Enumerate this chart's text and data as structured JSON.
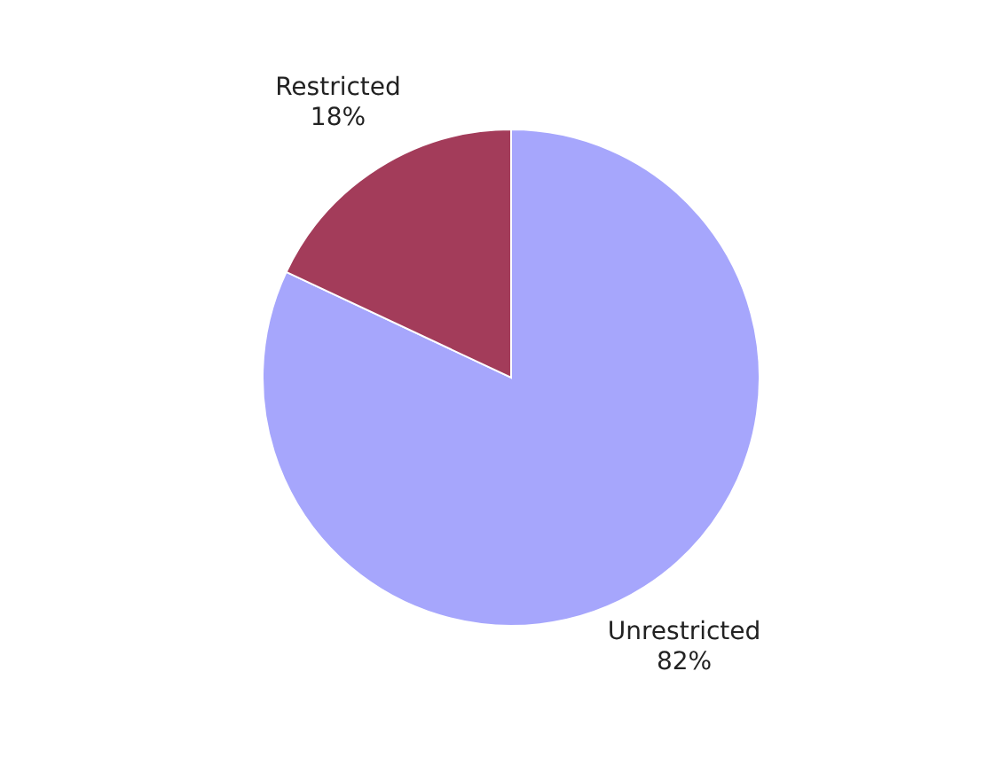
{
  "chart_data": {
    "type": "pie",
    "categories": [
      "Unrestricted",
      "Restricted"
    ],
    "values": [
      82,
      18
    ],
    "colors": [
      "#a6a6fc",
      "#a33c5a"
    ],
    "value_labels": [
      "82%",
      "18%"
    ]
  }
}
